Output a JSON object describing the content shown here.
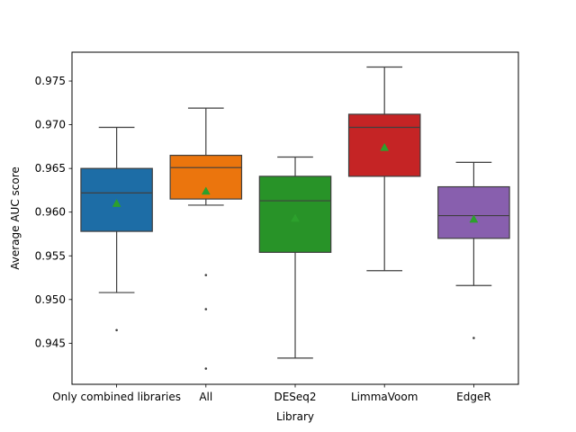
{
  "chart_data": {
    "type": "box",
    "title": "",
    "xlabel": "Library",
    "ylabel": "Average AUC score",
    "ylim": [
      0.9403,
      0.9783
    ],
    "yticks": [
      0.945,
      0.95,
      0.955,
      0.96,
      0.965,
      0.97,
      0.975
    ],
    "ytick_labels": [
      "0.945",
      "0.950",
      "0.955",
      "0.960",
      "0.965",
      "0.970",
      "0.975"
    ],
    "grid": false,
    "mean_marker": "triangle",
    "mean_color": "#2ca02c",
    "categories": [
      "Only combined libraries",
      "All",
      "DESeq2",
      "LimmaVoom",
      "EdgeR"
    ],
    "boxes": [
      {
        "color": "#1f77b4",
        "whisker_low": 0.9508,
        "q1": 0.9578,
        "median": 0.9622,
        "q3": 0.965,
        "whisker_high": 0.9697,
        "mean": 0.961,
        "outliers": [
          0.9465
        ]
      },
      {
        "color": "#ff7f0e",
        "whisker_low": 0.9608,
        "q1": 0.9615,
        "median": 0.9651,
        "q3": 0.9665,
        "whisker_high": 0.9719,
        "mean": 0.9624,
        "outliers": [
          0.9528,
          0.9489,
          0.9421
        ]
      },
      {
        "color": "#2ca02c",
        "whisker_low": 0.9433,
        "q1": 0.9554,
        "median": 0.9613,
        "q3": 0.9641,
        "whisker_high": 0.9663,
        "mean": 0.9593,
        "outliers": []
      },
      {
        "color": "#d62728",
        "whisker_low": 0.9533,
        "q1": 0.9641,
        "median": 0.9697,
        "q3": 0.9712,
        "whisker_high": 0.9766,
        "mean": 0.9674,
        "outliers": []
      },
      {
        "color": "#9467bd",
        "whisker_low": 0.9516,
        "q1": 0.957,
        "median": 0.9596,
        "q3": 0.9629,
        "whisker_high": 0.9657,
        "mean": 0.9592,
        "outliers": [
          0.9456
        ]
      }
    ]
  }
}
